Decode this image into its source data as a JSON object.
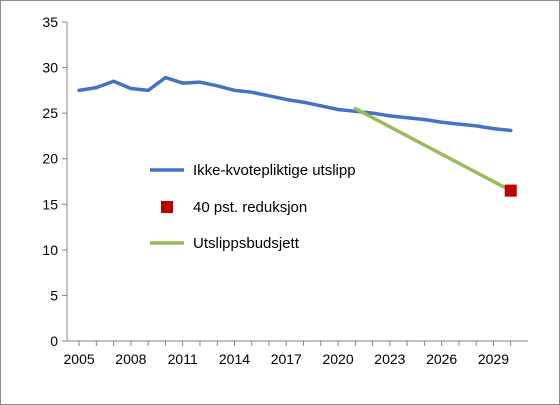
{
  "chart_data": {
    "type": "line",
    "x_ticks": [
      "2005",
      "2008",
      "2011",
      "2014",
      "2017",
      "2020",
      "2023",
      "2026",
      "2029"
    ],
    "y_ticks": [
      "0",
      "5",
      "10",
      "15",
      "20",
      "25",
      "30",
      "35"
    ],
    "xlim": [
      2004.3,
      2031
    ],
    "ylim": [
      0,
      35
    ],
    "grid": "off",
    "legend": "inside-center-left",
    "series": [
      {
        "name": "Ikke-kvotepliktige utslipp",
        "kind": "line",
        "color": "#4472c4",
        "points": [
          [
            2005,
            27.5
          ],
          [
            2006,
            27.8
          ],
          [
            2007,
            28.5
          ],
          [
            2008,
            27.7
          ],
          [
            2009,
            27.5
          ],
          [
            2010,
            28.9
          ],
          [
            2011,
            28.3
          ],
          [
            2012,
            28.4
          ],
          [
            2013,
            28.0
          ],
          [
            2014,
            27.5
          ],
          [
            2015,
            27.3
          ],
          [
            2016,
            26.9
          ],
          [
            2017,
            26.5
          ],
          [
            2018,
            26.2
          ],
          [
            2019,
            25.8
          ],
          [
            2020,
            25.4
          ],
          [
            2021,
            25.2
          ],
          [
            2022,
            25.0
          ],
          [
            2023,
            24.7
          ],
          [
            2024,
            24.5
          ],
          [
            2025,
            24.3
          ],
          [
            2026,
            24.0
          ],
          [
            2027,
            23.8
          ],
          [
            2028,
            23.6
          ],
          [
            2029,
            23.3
          ],
          [
            2030,
            23.1
          ]
        ]
      },
      {
        "name": "40 pst. reduksjon",
        "kind": "marker",
        "color": "#c00000",
        "points": [
          [
            2030,
            16.5
          ]
        ]
      },
      {
        "name": "Utslippsbudsjett",
        "kind": "line",
        "color": "#9bbb59",
        "points": [
          [
            2021,
            25.5
          ],
          [
            2030,
            16.5
          ]
        ]
      }
    ]
  }
}
